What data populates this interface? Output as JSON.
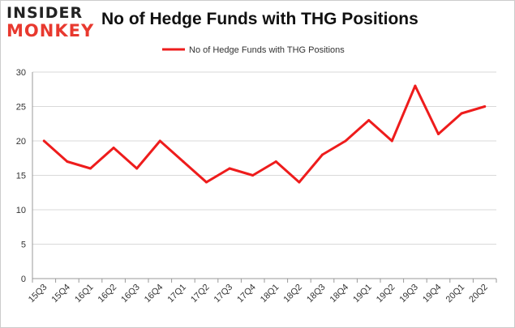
{
  "logo": {
    "line1": "INSIDER",
    "line2": "MONKEY"
  },
  "colors": {
    "line": "#ee1c1c",
    "grid": "#d9d9d9",
    "logo_accent": "#e8392f",
    "border": "#cccccc"
  },
  "chart_data": {
    "type": "line",
    "title": "No of Hedge Funds with THG Positions",
    "xlabel": "",
    "ylabel": "",
    "categories": [
      "15Q3",
      "15Q4",
      "16Q1",
      "16Q2",
      "16Q3",
      "16Q4",
      "17Q1",
      "17Q2",
      "17Q3",
      "17Q4",
      "18Q1",
      "18Q2",
      "18Q3",
      "18Q4",
      "19Q1",
      "19Q2",
      "19Q3",
      "19Q4",
      "20Q1",
      "20Q2"
    ],
    "series": [
      {
        "name": "No of Hedge Funds with THG Positions",
        "values": [
          20,
          17,
          16,
          19,
          16,
          20,
          17,
          14,
          16,
          15,
          17,
          14,
          18,
          20,
          23,
          20,
          28,
          21,
          24,
          25
        ]
      }
    ],
    "ylim": [
      0,
      30
    ],
    "yticks": [
      0,
      5,
      10,
      15,
      20,
      25,
      30
    ],
    "grid": "horizontal",
    "legend": "top-center"
  }
}
